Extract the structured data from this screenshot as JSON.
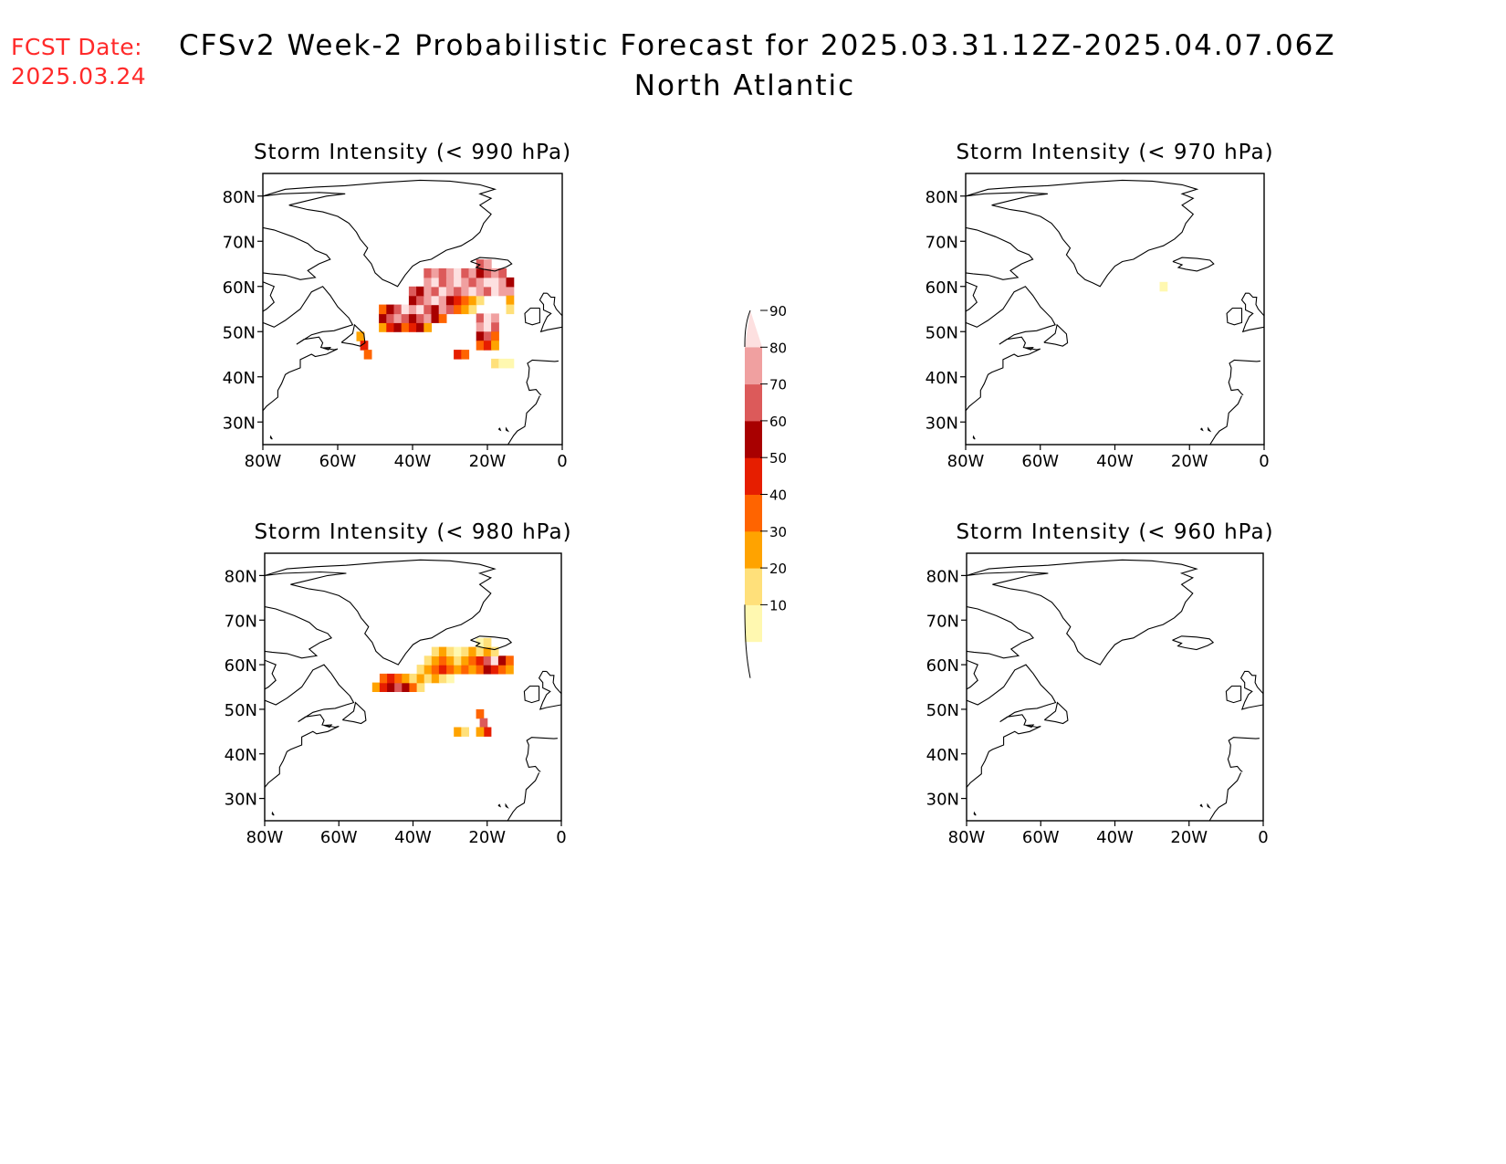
{
  "header": {
    "fcst_label": "FCST Date:",
    "fcst_date": "2025.03.24",
    "title": "CFSv2 Week-2 Probabilistic Forecast for 2025.03.31.12Z-2025.04.07.06Z",
    "subtitle": "North Atlantic"
  },
  "colors": {
    "fcst_date": "#ff2a2a",
    "land_outline": "#000000",
    "scale": [
      "#fff8b0",
      "#ffe07a",
      "#ffa300",
      "#ff6400",
      "#e61e00",
      "#a80000",
      "#dc5a5a",
      "#f0a0a0",
      "#fde0e0"
    ]
  },
  "axes": {
    "lat_ticks": [
      "80N",
      "70N",
      "60N",
      "50N",
      "40N",
      "30N"
    ],
    "lon_ticks": [
      "80W",
      "60W",
      "40W",
      "20W",
      "0"
    ]
  },
  "colorbar": {
    "labels": [
      "10",
      "20",
      "30",
      "40",
      "50",
      "60",
      "70",
      "80",
      "90"
    ]
  },
  "panels": [
    {
      "id": "p990",
      "title": "Storm Intensity (< 990 hPa)",
      "cells": [
        [
          -48,
          51,
          30
        ],
        [
          -46,
          51,
          50
        ],
        [
          -44,
          51,
          60
        ],
        [
          -42,
          51,
          40
        ],
        [
          -40,
          51,
          50
        ],
        [
          -38,
          51,
          60
        ],
        [
          -36,
          51,
          30
        ],
        [
          -48,
          53,
          60
        ],
        [
          -46,
          53,
          70
        ],
        [
          -44,
          53,
          80
        ],
        [
          -42,
          53,
          70
        ],
        [
          -40,
          53,
          60
        ],
        [
          -38,
          53,
          70
        ],
        [
          -36,
          53,
          80
        ],
        [
          -34,
          53,
          60
        ],
        [
          -32,
          53,
          40
        ],
        [
          -48,
          55,
          40
        ],
        [
          -46,
          55,
          60
        ],
        [
          -44,
          55,
          70
        ],
        [
          -42,
          55,
          90
        ],
        [
          -40,
          55,
          80
        ],
        [
          -38,
          55,
          90
        ],
        [
          -36,
          55,
          70
        ],
        [
          -34,
          55,
          60
        ],
        [
          -32,
          55,
          80
        ],
        [
          -30,
          55,
          70
        ],
        [
          -28,
          55,
          40
        ],
        [
          -26,
          55,
          30
        ],
        [
          -24,
          55,
          20
        ],
        [
          -40,
          57,
          60
        ],
        [
          -38,
          57,
          70
        ],
        [
          -36,
          57,
          80
        ],
        [
          -34,
          57,
          90
        ],
        [
          -32,
          57,
          80
        ],
        [
          -30,
          57,
          60
        ],
        [
          -28,
          57,
          50
        ],
        [
          -26,
          57,
          40
        ],
        [
          -24,
          57,
          30
        ],
        [
          -22,
          57,
          20
        ],
        [
          -40,
          59,
          70
        ],
        [
          -38,
          59,
          60
        ],
        [
          -36,
          59,
          80
        ],
        [
          -34,
          59,
          70
        ],
        [
          -32,
          59,
          90
        ],
        [
          -30,
          59,
          80
        ],
        [
          -28,
          59,
          70
        ],
        [
          -26,
          59,
          80
        ],
        [
          -24,
          59,
          90
        ],
        [
          -22,
          59,
          80
        ],
        [
          -20,
          59,
          70
        ],
        [
          -18,
          59,
          90
        ],
        [
          -16,
          59,
          80
        ],
        [
          -14,
          59,
          80
        ],
        [
          -36,
          61,
          80
        ],
        [
          -34,
          61,
          90
        ],
        [
          -32,
          61,
          70
        ],
        [
          -30,
          61,
          80
        ],
        [
          -28,
          61,
          90
        ],
        [
          -26,
          61,
          80
        ],
        [
          -24,
          61,
          70
        ],
        [
          -22,
          61,
          80
        ],
        [
          -20,
          61,
          90
        ],
        [
          -18,
          61,
          90
        ],
        [
          -16,
          61,
          80
        ],
        [
          -14,
          61,
          60
        ],
        [
          -36,
          63,
          70
        ],
        [
          -34,
          63,
          80
        ],
        [
          -32,
          63,
          70
        ],
        [
          -30,
          63,
          80
        ],
        [
          -28,
          63,
          90
        ],
        [
          -26,
          63,
          70
        ],
        [
          -24,
          63,
          80
        ],
        [
          -22,
          63,
          60
        ],
        [
          -20,
          63,
          70
        ],
        [
          -18,
          63,
          80
        ],
        [
          -16,
          63,
          70
        ],
        [
          -22,
          65,
          70
        ],
        [
          -20,
          65,
          80
        ],
        [
          -22,
          53,
          70
        ],
        [
          -20,
          53,
          90
        ],
        [
          -18,
          53,
          80
        ],
        [
          -22,
          51,
          80
        ],
        [
          -20,
          51,
          90
        ],
        [
          -18,
          51,
          70
        ],
        [
          -22,
          49,
          60
        ],
        [
          -20,
          49,
          70
        ],
        [
          -18,
          49,
          40
        ],
        [
          -22,
          47,
          40
        ],
        [
          -20,
          47,
          50
        ],
        [
          -18,
          47,
          30
        ],
        [
          -28,
          45,
          50
        ],
        [
          -26,
          45,
          40
        ],
        [
          -18,
          43,
          20
        ],
        [
          -16,
          43,
          10
        ],
        [
          -14,
          43,
          10
        ],
        [
          -54,
          49,
          30
        ],
        [
          -53,
          47,
          50
        ],
        [
          -52,
          45,
          40
        ],
        [
          -14,
          57,
          30
        ],
        [
          -14,
          55,
          20
        ]
      ]
    },
    {
      "id": "p970",
      "title": "Storm Intensity (< 970 hPa)",
      "cells": [
        [
          -27,
          60,
          10
        ]
      ]
    },
    {
      "id": "p980",
      "title": "Storm Intensity (< 980 hPa)",
      "cells": [
        [
          -50,
          55,
          30
        ],
        [
          -48,
          55,
          50
        ],
        [
          -46,
          55,
          60
        ],
        [
          -44,
          55,
          70
        ],
        [
          -42,
          55,
          60
        ],
        [
          -40,
          55,
          40
        ],
        [
          -38,
          55,
          20
        ],
        [
          -48,
          57,
          40
        ],
        [
          -46,
          57,
          50
        ],
        [
          -44,
          57,
          40
        ],
        [
          -42,
          57,
          30
        ],
        [
          -40,
          57,
          20
        ],
        [
          -38,
          57,
          30
        ],
        [
          -36,
          57,
          20
        ],
        [
          -34,
          57,
          30
        ],
        [
          -32,
          57,
          20
        ],
        [
          -30,
          57,
          10
        ],
        [
          -38,
          59,
          20
        ],
        [
          -36,
          59,
          30
        ],
        [
          -34,
          59,
          40
        ],
        [
          -32,
          59,
          50
        ],
        [
          -30,
          59,
          40
        ],
        [
          -28,
          59,
          30
        ],
        [
          -26,
          59,
          40
        ],
        [
          -24,
          59,
          30
        ],
        [
          -22,
          59,
          40
        ],
        [
          -20,
          59,
          60
        ],
        [
          -18,
          59,
          50
        ],
        [
          -16,
          59,
          40
        ],
        [
          -14,
          59,
          30
        ],
        [
          -36,
          61,
          20
        ],
        [
          -34,
          61,
          30
        ],
        [
          -32,
          61,
          40
        ],
        [
          -30,
          61,
          30
        ],
        [
          -28,
          61,
          20
        ],
        [
          -26,
          61,
          30
        ],
        [
          -24,
          61,
          40
        ],
        [
          -22,
          61,
          50
        ],
        [
          -20,
          61,
          70
        ],
        [
          -18,
          61,
          90
        ],
        [
          -16,
          61,
          60
        ],
        [
          -14,
          61,
          40
        ],
        [
          -34,
          63,
          20
        ],
        [
          -32,
          63,
          30
        ],
        [
          -30,
          63,
          20
        ],
        [
          -28,
          63,
          10
        ],
        [
          -26,
          63,
          20
        ],
        [
          -24,
          63,
          30
        ],
        [
          -22,
          63,
          20
        ],
        [
          -20,
          63,
          30
        ],
        [
          -18,
          63,
          20
        ],
        [
          -22,
          65,
          10
        ],
        [
          -20,
          65,
          20
        ],
        [
          -22,
          49,
          40
        ],
        [
          -21,
          47,
          70
        ],
        [
          -20,
          45,
          50
        ],
        [
          -22,
          45,
          30
        ],
        [
          -28,
          45,
          30
        ],
        [
          -26,
          45,
          20
        ]
      ]
    },
    {
      "id": "p960",
      "title": "Storm Intensity (< 960 hPa)",
      "cells": []
    }
  ]
}
